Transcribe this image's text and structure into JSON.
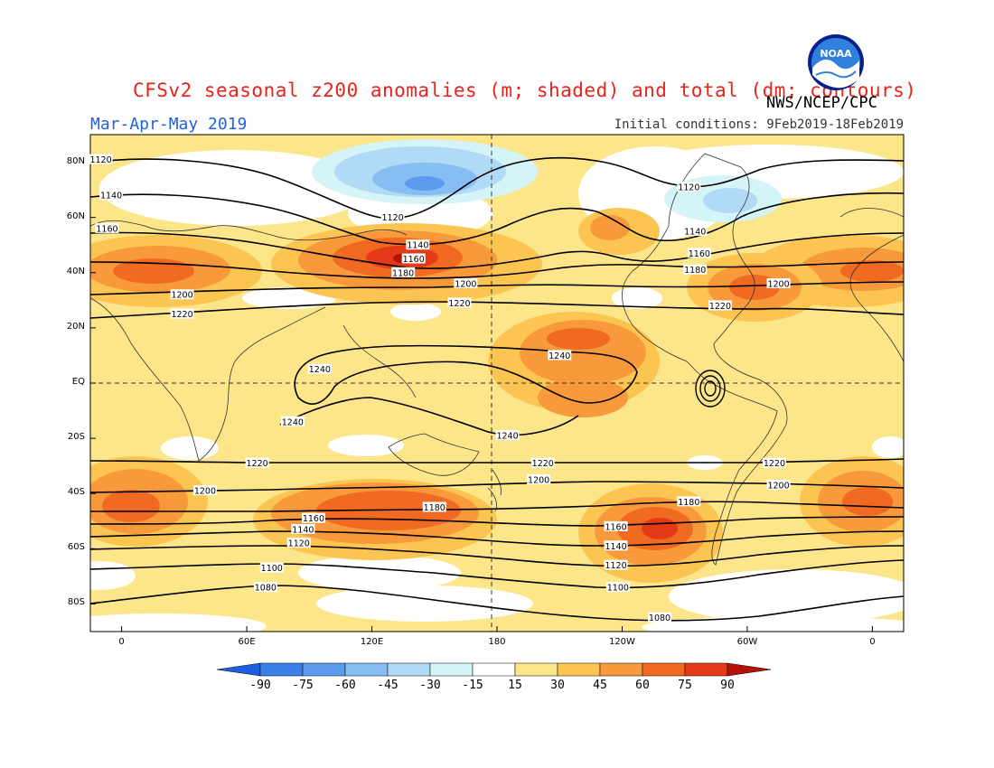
{
  "header": {
    "title": "CFSv2 seasonal z200 anomalies (m; shaded) and total (dm; contours)",
    "season": "Mar-Apr-May 2019",
    "initial_conditions": "Initial conditions: 9Feb2019-18Feb2019",
    "agency": "NWS/NCEP/CPC",
    "logo_text": "NOAA"
  },
  "axes": {
    "lat_labels": [
      "80N",
      "60N",
      "40N",
      "20N",
      "EQ",
      "20S",
      "40S",
      "60S",
      "80S"
    ],
    "lat_values": [
      80,
      60,
      40,
      20,
      0,
      -20,
      -40,
      -60,
      -80
    ],
    "lon_labels": [
      "0",
      "60E",
      "120E",
      "180",
      "120W",
      "60W",
      "0"
    ],
    "lon_values": [
      0,
      60,
      120,
      180,
      240,
      300,
      360
    ]
  },
  "colorbar": {
    "labels": [
      "-90",
      "-75",
      "-60",
      "-45",
      "-30",
      "-15",
      "15",
      "30",
      "45",
      "60",
      "75",
      "90"
    ],
    "colors": [
      "#1c5fe0",
      "#3b80e8",
      "#5c9cec",
      "#86bdf2",
      "#b0daf5",
      "#d4f4f8",
      "#ffffff",
      "#fde58a",
      "#fcc552",
      "#f89a3c",
      "#f06a22",
      "#e53a17",
      "#b51208"
    ]
  },
  "contour_labels": [
    {
      "text": "1120",
      "lon": -10,
      "lat": 81
    },
    {
      "text": "1140",
      "lon": -5,
      "lat": 68
    },
    {
      "text": "1160",
      "lon": -7,
      "lat": 56
    },
    {
      "text": "1200",
      "lon": 29,
      "lat": 32
    },
    {
      "text": "1220",
      "lon": 29,
      "lat": 25
    },
    {
      "text": "1120",
      "lon": 130,
      "lat": 60
    },
    {
      "text": "1140",
      "lon": 142,
      "lat": 50
    },
    {
      "text": "1160",
      "lon": 140,
      "lat": 45
    },
    {
      "text": "1180",
      "lon": 135,
      "lat": 40
    },
    {
      "text": "1200",
      "lon": 165,
      "lat": 36
    },
    {
      "text": "1220",
      "lon": 162,
      "lat": 29
    },
    {
      "text": "1240",
      "lon": 95,
      "lat": 5
    },
    {
      "text": "1240",
      "lon": 82,
      "lat": -14
    },
    {
      "text": "1240",
      "lon": 185,
      "lat": -19
    },
    {
      "text": "1240",
      "lon": 210,
      "lat": 10
    },
    {
      "text": "1120",
      "lon": 272,
      "lat": 71
    },
    {
      "text": "1140",
      "lon": 275,
      "lat": 55
    },
    {
      "text": "1160",
      "lon": 277,
      "lat": 47
    },
    {
      "text": "1180",
      "lon": 275,
      "lat": 41
    },
    {
      "text": "1200",
      "lon": 315,
      "lat": 36
    },
    {
      "text": "1220",
      "lon": 287,
      "lat": 28
    },
    {
      "text": "1220",
      "lon": 65,
      "lat": -29
    },
    {
      "text": "1220",
      "lon": 202,
      "lat": -29
    },
    {
      "text": "1220",
      "lon": 313,
      "lat": -29
    },
    {
      "text": "1200",
      "lon": 40,
      "lat": -39
    },
    {
      "text": "1200",
      "lon": 200,
      "lat": -35
    },
    {
      "text": "1200",
      "lon": 315,
      "lat": -37
    },
    {
      "text": "1180",
      "lon": 150,
      "lat": -45
    },
    {
      "text": "1180",
      "lon": 272,
      "lat": -43
    },
    {
      "text": "1160",
      "lon": 92,
      "lat": -49
    },
    {
      "text": "1160",
      "lon": 237,
      "lat": -52
    },
    {
      "text": "1140",
      "lon": 87,
      "lat": -53
    },
    {
      "text": "1140",
      "lon": 237,
      "lat": -59
    },
    {
      "text": "1120",
      "lon": 85,
      "lat": -58
    },
    {
      "text": "1120",
      "lon": 237,
      "lat": -66
    },
    {
      "text": "1100",
      "lon": 72,
      "lat": -67
    },
    {
      "text": "1100",
      "lon": 238,
      "lat": -74
    },
    {
      "text": "1080",
      "lon": 69,
      "lat": -74
    },
    {
      "text": "1080",
      "lon": 258,
      "lat": -85
    }
  ]
}
